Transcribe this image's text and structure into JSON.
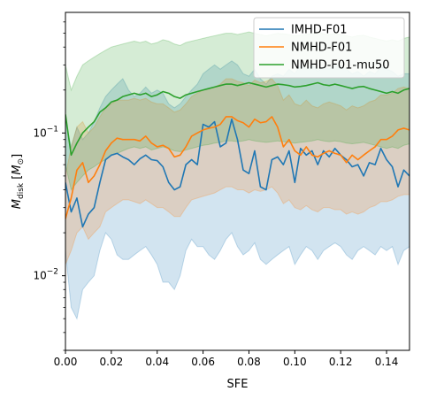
{
  "chart_data": {
    "type": "line",
    "title": "",
    "xlabel": "SFE",
    "ylabel_main": "M",
    "ylabel_sub": "disk",
    "ylabel_unit_main": "M",
    "ylabel_unit_sub": "⊙",
    "xlim": [
      0.0,
      0.15
    ],
    "ylim": [
      0.003,
      0.7
    ],
    "yscale": "log",
    "grid": false,
    "legend_position": "top-right",
    "x_ticks": [
      {
        "value": 0.0,
        "label": "0.00"
      },
      {
        "value": 0.02,
        "label": "0.02"
      },
      {
        "value": 0.04,
        "label": "0.04"
      },
      {
        "value": 0.06,
        "label": "0.06"
      },
      {
        "value": 0.08,
        "label": "0.08"
      },
      {
        "value": 0.1,
        "label": "0.10"
      },
      {
        "value": 0.12,
        "label": "0.12"
      },
      {
        "value": 0.14,
        "label": "0.14"
      }
    ],
    "y_ticks": [
      {
        "value": 0.01,
        "base": "10",
        "exp": "−2"
      },
      {
        "value": 0.1,
        "base": "10",
        "exp": "−1"
      }
    ],
    "x": [
      0.0,
      0.0025,
      0.005,
      0.0075,
      0.01,
      0.0125,
      0.015,
      0.0175,
      0.02,
      0.0225,
      0.025,
      0.0275,
      0.03,
      0.0325,
      0.035,
      0.0375,
      0.04,
      0.0425,
      0.045,
      0.0475,
      0.05,
      0.0525,
      0.055,
      0.0575,
      0.06,
      0.0625,
      0.065,
      0.0675,
      0.07,
      0.0725,
      0.075,
      0.0775,
      0.08,
      0.0825,
      0.085,
      0.0875,
      0.09,
      0.0925,
      0.095,
      0.0975,
      0.1,
      0.1025,
      0.105,
      0.1075,
      0.11,
      0.1125,
      0.115,
      0.1175,
      0.12,
      0.1225,
      0.125,
      0.1275,
      0.13,
      0.1325,
      0.135,
      0.1375,
      0.14,
      0.1425,
      0.145,
      0.1475,
      0.15
    ],
    "series": [
      {
        "name": "IMHD-F01",
        "color": "#1f77b4",
        "values": [
          0.045,
          0.028,
          0.035,
          0.022,
          0.027,
          0.03,
          0.045,
          0.065,
          0.07,
          0.072,
          0.068,
          0.065,
          0.06,
          0.066,
          0.07,
          0.065,
          0.064,
          0.058,
          0.045,
          0.04,
          0.042,
          0.06,
          0.065,
          0.06,
          0.115,
          0.11,
          0.12,
          0.08,
          0.085,
          0.125,
          0.09,
          0.055,
          0.052,
          0.075,
          0.042,
          0.04,
          0.065,
          0.068,
          0.06,
          0.075,
          0.045,
          0.078,
          0.07,
          0.075,
          0.06,
          0.075,
          0.068,
          0.078,
          0.07,
          0.065,
          0.058,
          0.06,
          0.05,
          0.062,
          0.06,
          0.078,
          0.065,
          0.058,
          0.042,
          0.055,
          0.05
        ]
      },
      {
        "name": "NMHD-F01",
        "color": "#ff7f0e",
        "values": [
          0.025,
          0.035,
          0.055,
          0.062,
          0.045,
          0.05,
          0.06,
          0.075,
          0.085,
          0.092,
          0.09,
          0.09,
          0.09,
          0.088,
          0.095,
          0.085,
          0.08,
          0.082,
          0.078,
          0.068,
          0.07,
          0.08,
          0.095,
          0.1,
          0.105,
          0.108,
          0.11,
          0.115,
          0.13,
          0.13,
          0.122,
          0.118,
          0.11,
          0.125,
          0.118,
          0.12,
          0.13,
          0.11,
          0.08,
          0.09,
          0.075,
          0.07,
          0.08,
          0.07,
          0.068,
          0.072,
          0.075,
          0.072,
          0.07,
          0.062,
          0.07,
          0.065,
          0.07,
          0.075,
          0.08,
          0.09,
          0.09,
          0.095,
          0.105,
          0.108,
          0.105
        ]
      },
      {
        "name": "NMHD-F01-mu50",
        "color": "#2ca02c",
        "values": [
          0.135,
          0.07,
          0.085,
          0.1,
          0.11,
          0.12,
          0.14,
          0.15,
          0.165,
          0.17,
          0.18,
          0.185,
          0.19,
          0.185,
          0.19,
          0.18,
          0.185,
          0.195,
          0.19,
          0.18,
          0.175,
          0.185,
          0.19,
          0.195,
          0.2,
          0.205,
          0.21,
          0.215,
          0.22,
          0.22,
          0.215,
          0.22,
          0.225,
          0.22,
          0.215,
          0.21,
          0.215,
          0.22,
          0.218,
          0.215,
          0.21,
          0.212,
          0.215,
          0.22,
          0.225,
          0.218,
          0.215,
          0.22,
          0.215,
          0.21,
          0.205,
          0.21,
          0.212,
          0.205,
          0.2,
          0.195,
          0.19,
          0.195,
          0.19,
          0.2,
          0.205
        ]
      }
    ],
    "bands": [
      {
        "series": "IMHD-F01",
        "color": "#1f77b4",
        "lower": [
          0.015,
          0.006,
          0.005,
          0.008,
          0.009,
          0.01,
          0.015,
          0.02,
          0.018,
          0.014,
          0.013,
          0.013,
          0.014,
          0.015,
          0.016,
          0.014,
          0.012,
          0.009,
          0.009,
          0.008,
          0.01,
          0.015,
          0.018,
          0.016,
          0.016,
          0.014,
          0.013,
          0.015,
          0.018,
          0.02,
          0.016,
          0.014,
          0.015,
          0.017,
          0.013,
          0.012,
          0.013,
          0.014,
          0.015,
          0.016,
          0.012,
          0.014,
          0.016,
          0.015,
          0.013,
          0.015,
          0.016,
          0.017,
          0.016,
          0.014,
          0.013,
          0.015,
          0.016,
          0.015,
          0.014,
          0.016,
          0.015,
          0.016,
          0.012,
          0.015,
          0.016
        ],
        "upper": [
          0.12,
          0.08,
          0.11,
          0.09,
          0.1,
          0.12,
          0.15,
          0.18,
          0.2,
          0.22,
          0.24,
          0.2,
          0.18,
          0.19,
          0.21,
          0.19,
          0.2,
          0.19,
          0.16,
          0.15,
          0.16,
          0.18,
          0.2,
          0.22,
          0.26,
          0.28,
          0.3,
          0.28,
          0.3,
          0.32,
          0.3,
          0.26,
          0.25,
          0.28,
          0.24,
          0.22,
          0.25,
          0.26,
          0.25,
          0.28,
          0.26,
          0.3,
          0.28,
          0.3,
          0.27,
          0.29,
          0.28,
          0.3,
          0.29,
          0.28,
          0.26,
          0.27,
          0.25,
          0.27,
          0.26,
          0.29,
          0.28,
          0.27,
          0.25,
          0.26,
          0.26
        ]
      },
      {
        "series": "NMHD-F01",
        "color": "#ff7f0e",
        "lower": [
          0.012,
          0.015,
          0.02,
          0.022,
          0.018,
          0.02,
          0.022,
          0.028,
          0.03,
          0.032,
          0.034,
          0.034,
          0.033,
          0.032,
          0.034,
          0.032,
          0.03,
          0.03,
          0.028,
          0.026,
          0.026,
          0.03,
          0.034,
          0.035,
          0.036,
          0.037,
          0.038,
          0.04,
          0.042,
          0.042,
          0.04,
          0.04,
          0.038,
          0.04,
          0.039,
          0.04,
          0.042,
          0.038,
          0.032,
          0.034,
          0.03,
          0.029,
          0.031,
          0.029,
          0.028,
          0.03,
          0.03,
          0.029,
          0.029,
          0.027,
          0.028,
          0.027,
          0.028,
          0.03,
          0.031,
          0.033,
          0.033,
          0.034,
          0.036,
          0.037,
          0.037
        ],
        "upper": [
          0.05,
          0.08,
          0.11,
          0.12,
          0.1,
          0.11,
          0.13,
          0.15,
          0.16,
          0.17,
          0.17,
          0.17,
          0.175,
          0.17,
          0.175,
          0.165,
          0.16,
          0.16,
          0.15,
          0.14,
          0.145,
          0.16,
          0.18,
          0.19,
          0.2,
          0.205,
          0.21,
          0.22,
          0.24,
          0.24,
          0.23,
          0.225,
          0.215,
          0.235,
          0.225,
          0.23,
          0.24,
          0.215,
          0.17,
          0.185,
          0.16,
          0.155,
          0.17,
          0.155,
          0.15,
          0.16,
          0.165,
          0.16,
          0.155,
          0.145,
          0.155,
          0.15,
          0.155,
          0.165,
          0.17,
          0.185,
          0.185,
          0.19,
          0.205,
          0.21,
          0.205
        ]
      },
      {
        "series": "NMHD-F01-mu50",
        "color": "#2ca02c",
        "lower": [
          0.06,
          0.04,
          0.045,
          0.05,
          0.055,
          0.058,
          0.062,
          0.065,
          0.07,
          0.072,
          0.075,
          0.078,
          0.08,
          0.078,
          0.08,
          0.076,
          0.078,
          0.08,
          0.078,
          0.075,
          0.074,
          0.076,
          0.078,
          0.08,
          0.082,
          0.083,
          0.085,
          0.086,
          0.088,
          0.088,
          0.087,
          0.088,
          0.09,
          0.088,
          0.087,
          0.086,
          0.087,
          0.088,
          0.087,
          0.086,
          0.085,
          0.086,
          0.087,
          0.088,
          0.09,
          0.088,
          0.087,
          0.088,
          0.087,
          0.085,
          0.084,
          0.085,
          0.086,
          0.084,
          0.082,
          0.08,
          0.078,
          0.08,
          0.078,
          0.082,
          0.084
        ],
        "upper": [
          0.3,
          0.2,
          0.25,
          0.3,
          0.32,
          0.34,
          0.36,
          0.38,
          0.4,
          0.41,
          0.42,
          0.43,
          0.44,
          0.43,
          0.44,
          0.42,
          0.43,
          0.45,
          0.44,
          0.42,
          0.41,
          0.43,
          0.44,
          0.45,
          0.46,
          0.47,
          0.48,
          0.49,
          0.5,
          0.5,
          0.49,
          0.5,
          0.51,
          0.5,
          0.49,
          0.48,
          0.49,
          0.5,
          0.495,
          0.49,
          0.48,
          0.485,
          0.49,
          0.5,
          0.51,
          0.495,
          0.49,
          0.5,
          0.49,
          0.48,
          0.47,
          0.48,
          0.485,
          0.47,
          0.46,
          0.45,
          0.44,
          0.45,
          0.44,
          0.46,
          0.47
        ]
      }
    ]
  }
}
